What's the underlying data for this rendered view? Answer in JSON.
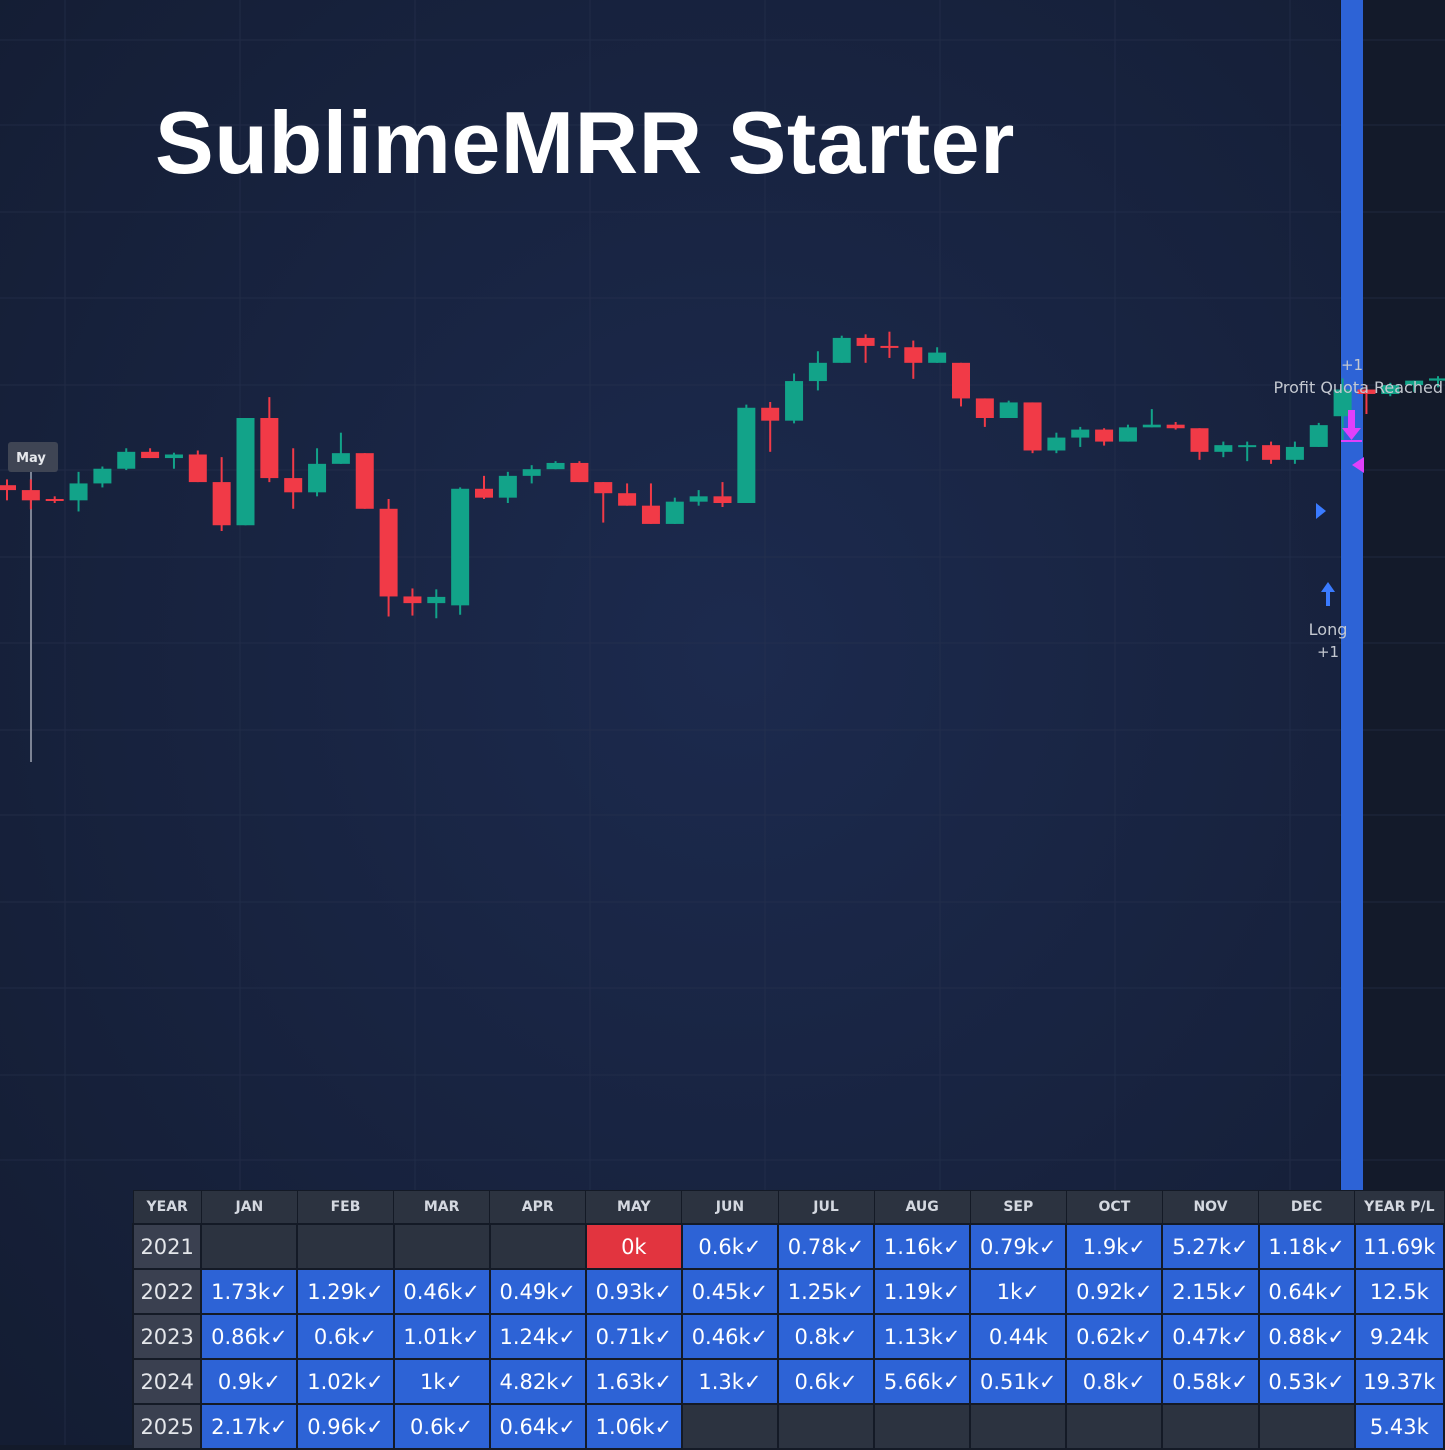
{
  "title": "SublimeMRR Starter",
  "colors": {
    "background": "#131a2a",
    "plot_background": "#1a2543",
    "up": "#12a389",
    "down": "#f13a47",
    "highlight": "#2d63d6",
    "long_marker": "#3a7bff",
    "exit_marker": "#e040fb"
  },
  "chart_data": {
    "type": "candlestick",
    "title": "SublimeMRR Starter",
    "price_range": [
      0,
      100
    ],
    "grid": true,
    "crosshair_label": "May",
    "annotations": [
      {
        "text": "+1",
        "role": "exit-count"
      },
      {
        "text": "Profit Quota Reached",
        "role": "exit-label"
      },
      {
        "text": "Long",
        "role": "entry-label"
      },
      {
        "text": "+1",
        "role": "entry-count"
      }
    ],
    "candles": [
      {
        "o": 64.0,
        "h": 65.3,
        "l": 60.6,
        "c": 62.9
      },
      {
        "o": 62.9,
        "h": 65.3,
        "l": 58.6,
        "c": 60.6
      },
      {
        "o": 60.9,
        "h": 61.5,
        "l": 60.0,
        "c": 60.6
      },
      {
        "o": 60.6,
        "h": 67.0,
        "l": 58.1,
        "c": 64.4
      },
      {
        "o": 64.4,
        "h": 68.2,
        "l": 63.5,
        "c": 67.7
      },
      {
        "o": 67.7,
        "h": 72.3,
        "l": 67.4,
        "c": 71.5
      },
      {
        "o": 71.5,
        "h": 72.3,
        "l": 70.1,
        "c": 70.1
      },
      {
        "o": 70.1,
        "h": 71.3,
        "l": 67.7,
        "c": 70.9
      },
      {
        "o": 70.9,
        "h": 71.8,
        "l": 64.7,
        "c": 64.7
      },
      {
        "o": 64.7,
        "h": 70.3,
        "l": 53.7,
        "c": 55.0
      },
      {
        "o": 55.0,
        "h": 79.1,
        "l": 55.0,
        "c": 79.1
      },
      {
        "o": 79.1,
        "h": 83.8,
        "l": 64.7,
        "c": 65.6
      },
      {
        "o": 65.6,
        "h": 72.3,
        "l": 58.7,
        "c": 62.4
      },
      {
        "o": 62.4,
        "h": 72.3,
        "l": 61.5,
        "c": 68.8
      },
      {
        "o": 68.8,
        "h": 75.8,
        "l": 68.8,
        "c": 71.2
      },
      {
        "o": 71.2,
        "h": 71.2,
        "l": 58.7,
        "c": 58.7
      },
      {
        "o": 58.7,
        "h": 60.9,
        "l": 34.5,
        "c": 39.0
      },
      {
        "o": 39.0,
        "h": 40.8,
        "l": 34.7,
        "c": 37.5
      },
      {
        "o": 37.5,
        "h": 40.6,
        "l": 34.1,
        "c": 38.9
      },
      {
        "o": 37.0,
        "h": 63.5,
        "l": 34.9,
        "c": 63.2
      },
      {
        "o": 63.2,
        "h": 66.1,
        "l": 60.9,
        "c": 61.2
      },
      {
        "o": 61.2,
        "h": 67.0,
        "l": 60.0,
        "c": 66.1
      },
      {
        "o": 66.1,
        "h": 68.5,
        "l": 64.4,
        "c": 67.6
      },
      {
        "o": 67.6,
        "h": 69.4,
        "l": 67.6,
        "c": 69.0
      },
      {
        "o": 69.0,
        "h": 69.4,
        "l": 64.7,
        "c": 64.7
      },
      {
        "o": 64.7,
        "h": 64.7,
        "l": 55.6,
        "c": 62.2
      },
      {
        "o": 62.2,
        "h": 64.4,
        "l": 59.4,
        "c": 59.4
      },
      {
        "o": 59.4,
        "h": 64.4,
        "l": 55.3,
        "c": 55.3
      },
      {
        "o": 55.3,
        "h": 61.2,
        "l": 55.3,
        "c": 60.3
      },
      {
        "o": 60.3,
        "h": 62.9,
        "l": 59.4,
        "c": 61.5
      },
      {
        "o": 61.5,
        "h": 64.7,
        "l": 59.1,
        "c": 60.0
      },
      {
        "o": 60.0,
        "h": 82.1,
        "l": 60.0,
        "c": 81.4
      },
      {
        "o": 81.4,
        "h": 82.7,
        "l": 71.5,
        "c": 78.5
      },
      {
        "o": 78.5,
        "h": 89.1,
        "l": 77.9,
        "c": 87.4
      },
      {
        "o": 87.4,
        "h": 94.1,
        "l": 85.3,
        "c": 91.5
      },
      {
        "o": 91.5,
        "h": 97.6,
        "l": 91.5,
        "c": 97.1
      },
      {
        "o": 97.1,
        "h": 97.9,
        "l": 91.5,
        "c": 95.3
      },
      {
        "o": 95.3,
        "h": 98.5,
        "l": 92.6,
        "c": 95.0
      },
      {
        "o": 95.0,
        "h": 96.5,
        "l": 87.9,
        "c": 91.5
      },
      {
        "o": 91.5,
        "h": 95.0,
        "l": 91.5,
        "c": 93.8
      },
      {
        "o": 91.5,
        "h": 91.5,
        "l": 81.7,
        "c": 83.5
      },
      {
        "o": 83.5,
        "h": 83.5,
        "l": 77.1,
        "c": 79.1
      },
      {
        "o": 79.1,
        "h": 83.0,
        "l": 79.1,
        "c": 82.6
      },
      {
        "o": 82.6,
        "h": 82.6,
        "l": 71.2,
        "c": 71.8
      },
      {
        "o": 71.8,
        "h": 75.8,
        "l": 71.2,
        "c": 74.7
      },
      {
        "o": 74.7,
        "h": 77.1,
        "l": 72.6,
        "c": 76.5
      },
      {
        "o": 76.5,
        "h": 76.8,
        "l": 72.9,
        "c": 73.8
      },
      {
        "o": 73.8,
        "h": 77.6,
        "l": 73.8,
        "c": 77.0
      },
      {
        "o": 77.0,
        "h": 81.1,
        "l": 77.0,
        "c": 77.6
      },
      {
        "o": 77.6,
        "h": 78.2,
        "l": 76.5,
        "c": 76.8
      },
      {
        "o": 76.8,
        "h": 76.8,
        "l": 69.7,
        "c": 71.5
      },
      {
        "o": 71.5,
        "h": 73.8,
        "l": 70.3,
        "c": 73.0
      },
      {
        "o": 73.0,
        "h": 73.8,
        "l": 69.4,
        "c": 73.0
      },
      {
        "o": 73.0,
        "h": 73.8,
        "l": 68.8,
        "c": 69.7
      },
      {
        "o": 69.7,
        "h": 73.8,
        "l": 68.8,
        "c": 72.6
      },
      {
        "o": 72.6,
        "h": 78.0,
        "l": 72.6,
        "c": 77.5
      },
      {
        "o": 79.5,
        "h": 88.0,
        "l": 74.0,
        "c": 85.5
      },
      {
        "o": 85.5,
        "h": 86.5,
        "l": 80.0,
        "c": 84.5
      },
      {
        "o": 84.5,
        "h": 87.0,
        "l": 84.0,
        "c": 86.5
      },
      {
        "o": 86.5,
        "h": 87.5,
        "l": 85.0,
        "c": 87.5
      },
      {
        "o": 87.5,
        "h": 88.5,
        "l": 86.0,
        "c": 88.0
      }
    ]
  },
  "table": {
    "headers": [
      "YEAR",
      "JAN",
      "FEB",
      "MAR",
      "APR",
      "MAY",
      "JUN",
      "JUL",
      "AUG",
      "SEP",
      "OCT",
      "NOV",
      "DEC",
      "YEAR P/L"
    ],
    "rows": [
      {
        "year": "2021",
        "cells": [
          {
            "v": "",
            "s": "empty"
          },
          {
            "v": "",
            "s": "empty"
          },
          {
            "v": "",
            "s": "empty"
          },
          {
            "v": "",
            "s": "empty"
          },
          {
            "v": "0k",
            "s": "neg"
          },
          {
            "v": "0.6k✓",
            "s": "pos"
          },
          {
            "v": "0.78k✓",
            "s": "pos"
          },
          {
            "v": "1.16k✓",
            "s": "pos"
          },
          {
            "v": "0.79k✓",
            "s": "pos"
          },
          {
            "v": "1.9k✓",
            "s": "pos"
          },
          {
            "v": "5.27k✓",
            "s": "pos"
          },
          {
            "v": "1.18k✓",
            "s": "pos"
          }
        ],
        "total": "11.69k"
      },
      {
        "year": "2022",
        "cells": [
          {
            "v": "1.73k✓",
            "s": "pos"
          },
          {
            "v": "1.29k✓",
            "s": "pos"
          },
          {
            "v": "0.46k✓",
            "s": "pos"
          },
          {
            "v": "0.49k✓",
            "s": "pos"
          },
          {
            "v": "0.93k✓",
            "s": "pos"
          },
          {
            "v": "0.45k✓",
            "s": "pos"
          },
          {
            "v": "1.25k✓",
            "s": "pos"
          },
          {
            "v": "1.19k✓",
            "s": "pos"
          },
          {
            "v": "1k✓",
            "s": "pos"
          },
          {
            "v": "0.92k✓",
            "s": "pos"
          },
          {
            "v": "2.15k✓",
            "s": "pos"
          },
          {
            "v": "0.64k✓",
            "s": "pos"
          }
        ],
        "total": "12.5k"
      },
      {
        "year": "2023",
        "cells": [
          {
            "v": "0.86k✓",
            "s": "pos"
          },
          {
            "v": "0.6k✓",
            "s": "pos"
          },
          {
            "v": "1.01k✓",
            "s": "pos"
          },
          {
            "v": "1.24k✓",
            "s": "pos"
          },
          {
            "v": "0.71k✓",
            "s": "pos"
          },
          {
            "v": "0.46k✓",
            "s": "pos"
          },
          {
            "v": "0.8k✓",
            "s": "pos"
          },
          {
            "v": "1.13k✓",
            "s": "pos"
          },
          {
            "v": "0.44k",
            "s": "pos"
          },
          {
            "v": "0.62k✓",
            "s": "pos"
          },
          {
            "v": "0.47k✓",
            "s": "pos"
          },
          {
            "v": "0.88k✓",
            "s": "pos"
          }
        ],
        "total": "9.24k"
      },
      {
        "year": "2024",
        "cells": [
          {
            "v": "0.9k✓",
            "s": "pos"
          },
          {
            "v": "1.02k✓",
            "s": "pos"
          },
          {
            "v": "1k✓",
            "s": "pos"
          },
          {
            "v": "4.82k✓",
            "s": "pos"
          },
          {
            "v": "1.63k✓",
            "s": "pos"
          },
          {
            "v": "1.3k✓",
            "s": "pos"
          },
          {
            "v": "0.6k✓",
            "s": "pos"
          },
          {
            "v": "5.66k✓",
            "s": "pos"
          },
          {
            "v": "0.51k✓",
            "s": "pos"
          },
          {
            "v": "0.8k✓",
            "s": "pos"
          },
          {
            "v": "0.58k✓",
            "s": "pos"
          },
          {
            "v": "0.53k✓",
            "s": "pos"
          }
        ],
        "total": "19.37k"
      },
      {
        "year": "2025",
        "cells": [
          {
            "v": "2.17k✓",
            "s": "pos"
          },
          {
            "v": "0.96k✓",
            "s": "pos"
          },
          {
            "v": "0.6k✓",
            "s": "pos"
          },
          {
            "v": "0.64k✓",
            "s": "pos"
          },
          {
            "v": "1.06k✓",
            "s": "pos"
          },
          {
            "v": "",
            "s": "empty"
          },
          {
            "v": "",
            "s": "empty"
          },
          {
            "v": "",
            "s": "empty"
          },
          {
            "v": "",
            "s": "empty"
          },
          {
            "v": "",
            "s": "empty"
          },
          {
            "v": "",
            "s": "empty"
          },
          {
            "v": "",
            "s": "empty"
          }
        ],
        "total": "5.43k"
      }
    ]
  }
}
